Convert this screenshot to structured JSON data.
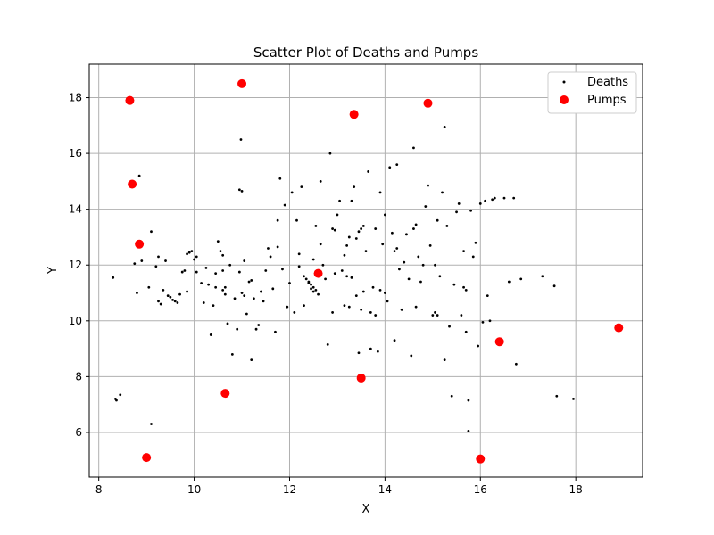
{
  "chart_data": {
    "type": "scatter",
    "title": "Scatter Plot of Deaths and Pumps",
    "xlabel": "X",
    "ylabel": "Y",
    "xlim": [
      7.8,
      19.4
    ],
    "ylim": [
      4.4,
      19.2
    ],
    "xticks": [
      8,
      10,
      12,
      14,
      16,
      18
    ],
    "yticks": [
      6,
      8,
      10,
      12,
      14,
      16,
      18
    ],
    "xtick_labels": [
      "8",
      "10",
      "12",
      "14",
      "16",
      "18"
    ],
    "ytick_labels": [
      "6",
      "8",
      "10",
      "12",
      "14",
      "16",
      "18"
    ],
    "grid": true,
    "legend": {
      "position": "top-right",
      "entries": [
        "Deaths",
        "Pumps"
      ]
    },
    "colors": {
      "deaths": "#000000",
      "pumps": "#ff0000",
      "grid": "#b0b0b0",
      "frame": "#000000"
    },
    "series": [
      {
        "name": "Deaths",
        "marker": "dot",
        "points": [
          [
            8.3,
            11.55
          ],
          [
            8.35,
            7.2
          ],
          [
            8.37,
            7.15
          ],
          [
            8.45,
            7.35
          ],
          [
            8.75,
            12.05
          ],
          [
            8.8,
            11.0
          ],
          [
            8.85,
            15.2
          ],
          [
            8.9,
            12.15
          ],
          [
            9.05,
            11.2
          ],
          [
            9.1,
            13.2
          ],
          [
            9.1,
            6.3
          ],
          [
            9.2,
            11.95
          ],
          [
            9.25,
            12.3
          ],
          [
            9.25,
            10.7
          ],
          [
            9.3,
            10.6
          ],
          [
            9.35,
            11.1
          ],
          [
            9.4,
            12.15
          ],
          [
            9.45,
            10.9
          ],
          [
            9.5,
            10.85
          ],
          [
            9.55,
            10.75
          ],
          [
            9.6,
            10.7
          ],
          [
            9.65,
            10.65
          ],
          [
            9.7,
            10.95
          ],
          [
            9.75,
            11.75
          ],
          [
            9.8,
            11.8
          ],
          [
            9.85,
            11.05
          ],
          [
            9.85,
            12.4
          ],
          [
            9.9,
            12.45
          ],
          [
            9.95,
            12.5
          ],
          [
            10.0,
            12.2
          ],
          [
            10.05,
            12.3
          ],
          [
            10.05,
            11.75
          ],
          [
            10.15,
            11.35
          ],
          [
            10.2,
            10.65
          ],
          [
            10.25,
            11.9
          ],
          [
            10.3,
            11.3
          ],
          [
            10.35,
            9.5
          ],
          [
            10.4,
            10.55
          ],
          [
            10.45,
            11.2
          ],
          [
            10.45,
            11.7
          ],
          [
            10.5,
            12.85
          ],
          [
            10.55,
            12.5
          ],
          [
            10.6,
            12.35
          ],
          [
            10.6,
            11.8
          ],
          [
            10.65,
            10.95
          ],
          [
            10.7,
            9.9
          ],
          [
            10.75,
            12.0
          ],
          [
            10.8,
            8.8
          ],
          [
            10.85,
            10.8
          ],
          [
            10.9,
            9.7
          ],
          [
            10.95,
            11.75
          ],
          [
            10.95,
            14.7
          ],
          [
            11.0,
            14.65
          ],
          [
            10.98,
            16.5
          ],
          [
            11.05,
            12.15
          ],
          [
            11.1,
            10.25
          ],
          [
            11.15,
            11.4
          ],
          [
            11.2,
            11.45
          ],
          [
            11.2,
            8.6
          ],
          [
            11.25,
            10.8
          ],
          [
            11.3,
            9.7
          ],
          [
            11.35,
            9.85
          ],
          [
            11.4,
            11.05
          ],
          [
            11.45,
            10.7
          ],
          [
            11.5,
            11.8
          ],
          [
            11.55,
            12.6
          ],
          [
            11.6,
            12.3
          ],
          [
            11.65,
            11.15
          ],
          [
            11.7,
            9.6
          ],
          [
            11.75,
            12.65
          ],
          [
            11.75,
            13.6
          ],
          [
            11.8,
            15.1
          ],
          [
            11.85,
            11.85
          ],
          [
            11.9,
            14.15
          ],
          [
            11.95,
            10.5
          ],
          [
            12.0,
            11.35
          ],
          [
            12.05,
            14.6
          ],
          [
            12.1,
            10.3
          ],
          [
            12.15,
            13.6
          ],
          [
            12.2,
            11.95
          ],
          [
            12.25,
            14.8
          ],
          [
            12.3,
            11.6
          ],
          [
            12.3,
            10.55
          ],
          [
            12.35,
            11.5
          ],
          [
            12.4,
            11.35
          ],
          [
            12.45,
            11.15
          ],
          [
            12.5,
            11.05
          ],
          [
            12.5,
            12.2
          ],
          [
            12.55,
            13.4
          ],
          [
            12.6,
            10.95
          ],
          [
            12.65,
            12.75
          ],
          [
            12.65,
            15.0
          ],
          [
            12.7,
            12.0
          ],
          [
            12.75,
            11.5
          ],
          [
            12.8,
            9.15
          ],
          [
            12.85,
            16.0
          ],
          [
            12.9,
            10.3
          ],
          [
            12.95,
            11.7
          ],
          [
            13.0,
            13.8
          ],
          [
            13.05,
            14.3
          ],
          [
            13.1,
            11.8
          ],
          [
            13.15,
            12.35
          ],
          [
            13.2,
            12.7
          ],
          [
            13.25,
            13.0
          ],
          [
            13.3,
            14.3
          ],
          [
            13.35,
            14.8
          ],
          [
            13.4,
            10.9
          ],
          [
            13.4,
            12.95
          ],
          [
            13.45,
            8.85
          ],
          [
            13.5,
            10.4
          ],
          [
            13.55,
            11.05
          ],
          [
            13.6,
            12.5
          ],
          [
            13.65,
            15.35
          ],
          [
            13.7,
            9.0
          ],
          [
            13.75,
            11.2
          ],
          [
            13.8,
            13.3
          ],
          [
            13.85,
            8.9
          ],
          [
            13.9,
            14.6
          ],
          [
            13.95,
            12.75
          ],
          [
            14.0,
            13.8
          ],
          [
            14.05,
            10.7
          ],
          [
            14.1,
            15.5
          ],
          [
            14.15,
            13.15
          ],
          [
            14.2,
            9.3
          ],
          [
            14.25,
            15.6
          ],
          [
            14.3,
            11.85
          ],
          [
            14.35,
            10.4
          ],
          [
            14.4,
            12.1
          ],
          [
            14.45,
            13.1
          ],
          [
            14.5,
            11.5
          ],
          [
            14.55,
            8.75
          ],
          [
            14.6,
            16.2
          ],
          [
            14.65,
            10.5
          ],
          [
            14.7,
            12.3
          ],
          [
            14.75,
            11.4
          ],
          [
            14.8,
            12.0
          ],
          [
            14.85,
            14.1
          ],
          [
            14.9,
            14.85
          ],
          [
            14.95,
            12.7
          ],
          [
            15.0,
            10.2
          ],
          [
            15.05,
            12.0
          ],
          [
            15.1,
            13.6
          ],
          [
            15.15,
            11.6
          ],
          [
            15.2,
            14.6
          ],
          [
            15.25,
            16.95
          ],
          [
            15.25,
            8.6
          ],
          [
            15.3,
            13.4
          ],
          [
            15.35,
            9.8
          ],
          [
            15.4,
            7.3
          ],
          [
            15.45,
            11.3
          ],
          [
            15.5,
            13.9
          ],
          [
            15.55,
            14.2
          ],
          [
            15.6,
            10.2
          ],
          [
            15.65,
            12.5
          ],
          [
            15.7,
            9.6
          ],
          [
            15.75,
            7.15
          ],
          [
            15.75,
            6.05
          ],
          [
            15.8,
            13.95
          ],
          [
            15.85,
            12.3
          ],
          [
            15.9,
            12.8
          ],
          [
            15.95,
            9.1
          ],
          [
            16.0,
            14.2
          ],
          [
            16.05,
            9.95
          ],
          [
            16.1,
            14.3
          ],
          [
            16.15,
            10.9
          ],
          [
            16.2,
            10.0
          ],
          [
            16.25,
            14.35
          ],
          [
            16.3,
            14.4
          ],
          [
            16.5,
            14.4
          ],
          [
            16.6,
            11.4
          ],
          [
            16.7,
            14.4
          ],
          [
            16.75,
            8.45
          ],
          [
            16.85,
            11.5
          ],
          [
            17.3,
            11.6
          ],
          [
            17.55,
            11.25
          ],
          [
            17.6,
            7.3
          ],
          [
            17.95,
            7.2
          ],
          [
            12.4,
            11.4
          ],
          [
            12.45,
            11.3
          ],
          [
            12.5,
            11.2
          ],
          [
            12.55,
            11.1
          ],
          [
            13.2,
            11.6
          ],
          [
            13.3,
            11.55
          ],
          [
            13.15,
            10.55
          ],
          [
            13.25,
            10.5
          ],
          [
            13.45,
            13.2
          ],
          [
            13.5,
            13.3
          ],
          [
            13.55,
            13.4
          ],
          [
            13.7,
            10.3
          ],
          [
            13.8,
            10.2
          ],
          [
            14.2,
            12.5
          ],
          [
            14.25,
            12.6
          ],
          [
            14.6,
            13.3
          ],
          [
            14.65,
            13.45
          ],
          [
            15.05,
            10.3
          ],
          [
            15.1,
            10.2
          ],
          [
            15.65,
            11.2
          ],
          [
            15.7,
            11.1
          ],
          [
            11.0,
            11.0
          ],
          [
            11.05,
            10.9
          ],
          [
            10.6,
            11.1
          ],
          [
            10.65,
            11.2
          ],
          [
            12.9,
            13.3
          ],
          [
            12.95,
            13.25
          ],
          [
            12.2,
            12.4
          ],
          [
            14.0,
            11.0
          ],
          [
            13.9,
            11.1
          ]
        ]
      },
      {
        "name": "Pumps",
        "marker": "circle",
        "points": [
          [
            8.65,
            17.9
          ],
          [
            8.7,
            14.9
          ],
          [
            8.85,
            12.75
          ],
          [
            9.0,
            5.1
          ],
          [
            10.65,
            7.4
          ],
          [
            11.0,
            18.5
          ],
          [
            12.6,
            11.7
          ],
          [
            13.35,
            17.4
          ],
          [
            13.5,
            7.95
          ],
          [
            14.9,
            17.8
          ],
          [
            16.0,
            5.05
          ],
          [
            16.4,
            9.25
          ],
          [
            18.9,
            9.75
          ]
        ]
      }
    ]
  }
}
